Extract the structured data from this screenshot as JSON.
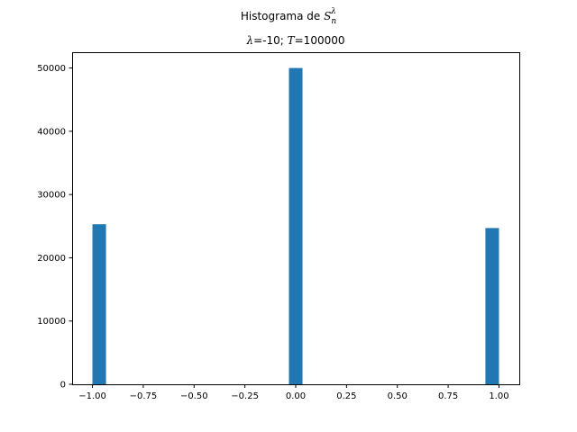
{
  "chart_data": {
    "type": "bar",
    "title_prefix": "Histograma de ",
    "title_symbol": "S",
    "title_sub": "n",
    "title_sup": "λ",
    "subtitle_lambda_symbol": "λ",
    "subtitle_lambda_value": "=-10; ",
    "subtitle_T_symbol": "T",
    "subtitle_T_value": "=100000",
    "xlabel": "",
    "ylabel": "",
    "xlim": [
      -1.1,
      1.1
    ],
    "ylim": [
      0,
      52500
    ],
    "xticks": [
      -1.0,
      -0.75,
      -0.5,
      -0.25,
      0.0,
      0.25,
      0.5,
      0.75,
      1.0
    ],
    "xtick_labels": [
      "−1.00",
      "−0.75",
      "−0.50",
      "−0.25",
      "0.00",
      "0.25",
      "0.50",
      "0.75",
      "1.00"
    ],
    "yticks": [
      0,
      10000,
      20000,
      30000,
      40000,
      50000
    ],
    "ytick_labels": [
      "0",
      "10000",
      "20000",
      "30000",
      "40000",
      "50000"
    ],
    "bin_width": 0.0667,
    "bars": [
      {
        "x_start": -1.0,
        "value": 25300
      },
      {
        "x_start": -0.0333,
        "value": 50000
      },
      {
        "x_start": 0.9333,
        "value": 24700
      }
    ],
    "bar_color": "#1f77b4",
    "grid": false,
    "legend": "none"
  }
}
